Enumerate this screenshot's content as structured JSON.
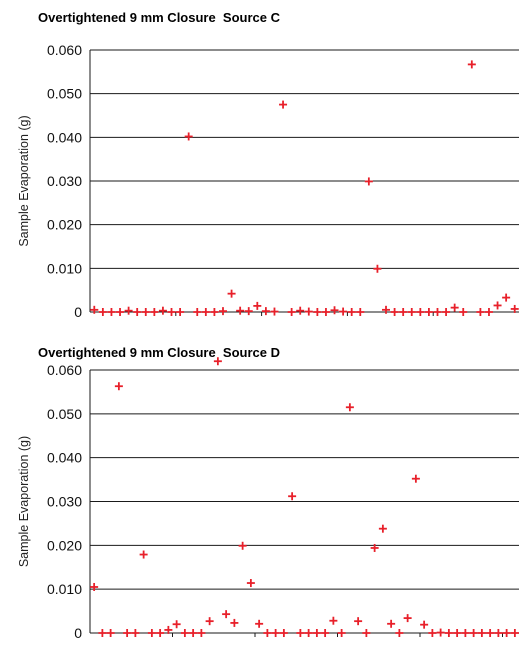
{
  "chart_data": [
    {
      "type": "scatter",
      "title": "Overtightened 9 mm Closure  Source C",
      "ylabel": "Sample Evaporation (g)",
      "xlabel": "",
      "ylim": [
        0,
        0.06
      ],
      "yticks": [
        "0",
        "0.010",
        "0.020",
        "0.030",
        "0.040",
        "0.050",
        "0.060"
      ],
      "grid": true,
      "marker": "+",
      "color": "#e8202a",
      "x": [
        1,
        2,
        3,
        4,
        5,
        6,
        7,
        8,
        9,
        10,
        11,
        12,
        13,
        14,
        15,
        16,
        17,
        18,
        19,
        20,
        21,
        22,
        23,
        24,
        25,
        26,
        27,
        28,
        29,
        30,
        31,
        32,
        33,
        34,
        35,
        36,
        37,
        38,
        39,
        40,
        41,
        42,
        43,
        44,
        45,
        46,
        47,
        48,
        49,
        50
      ],
      "y": [
        0.0005,
        0,
        0,
        0,
        0.0003,
        0,
        0,
        0,
        0.0003,
        0,
        0,
        0.0402,
        0,
        0,
        0,
        0.0002,
        0.0042,
        0.0003,
        0.0002,
        0.0014,
        0.0002,
        0.0001,
        0.0475,
        0,
        0.0003,
        0.0001,
        0,
        0,
        0.0004,
        0.0001,
        0,
        0,
        0.0299,
        0.0099,
        0.0005,
        0,
        0,
        0,
        0,
        0,
        0,
        0,
        0.001,
        0,
        0.0567,
        0,
        0,
        0.0015,
        0.0033,
        0.0007
      ]
    },
    {
      "type": "scatter",
      "title": "Overtightened 9 mm Closure  Source D",
      "ylabel": "Sample Evaporation (g)",
      "xlabel": "",
      "ylim": [
        0,
        0.06
      ],
      "yticks": [
        "0",
        "0.010",
        "0.020",
        "0.030",
        "0.040",
        "0.050",
        "0.060"
      ],
      "grid": true,
      "marker": "+",
      "color": "#e8202a",
      "x": [
        1,
        2,
        3,
        4,
        5,
        6,
        7,
        8,
        9,
        10,
        11,
        12,
        13,
        14,
        15,
        16,
        17,
        18,
        19,
        20,
        21,
        22,
        23,
        24,
        25,
        26,
        27,
        28,
        29,
        30,
        31,
        32,
        33,
        34,
        35,
        36,
        37,
        38,
        39,
        40,
        41,
        42,
        43,
        44,
        45,
        46,
        47,
        48,
        49,
        50,
        51,
        52
      ],
      "y": [
        0.0105,
        0,
        0,
        0.0563,
        0,
        0,
        0.0179,
        0,
        0,
        0.0007,
        0.002,
        0,
        0,
        0,
        0.0027,
        0.062,
        0.0043,
        0.0023,
        0.0199,
        0.0114,
        0.0021,
        0,
        0,
        0,
        0.0312,
        0,
        0,
        0,
        0,
        0.0028,
        0,
        0.0515,
        0.0027,
        0,
        0.0194,
        0.0238,
        0.0021,
        0,
        0.0034,
        0.0352,
        0.0019,
        0,
        0.0001,
        0,
        0,
        0,
        0,
        0,
        0,
        0,
        0,
        0
      ]
    }
  ]
}
